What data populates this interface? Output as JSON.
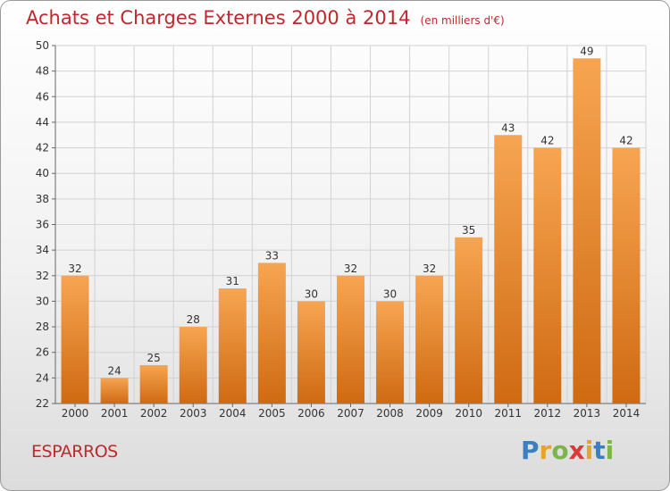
{
  "title": "Achats et Charges Externes 2000 à 2014",
  "unit": "(en milliers d'€)",
  "commune": "ESPARROS",
  "logo": {
    "letters": [
      {
        "ch": "P",
        "color": "#3a7fc4"
      },
      {
        "ch": "r",
        "color": "#e8a32a"
      },
      {
        "ch": "o",
        "color": "#7ab648"
      },
      {
        "ch": "x",
        "color": "#d83b3b"
      },
      {
        "ch": "i",
        "color": "#e8a32a"
      },
      {
        "ch": "t",
        "color": "#3a7fc4"
      },
      {
        "ch": "i",
        "color": "#7ab648"
      }
    ]
  },
  "chart_data": {
    "type": "bar",
    "categories": [
      "2000",
      "2001",
      "2002",
      "2003",
      "2004",
      "2005",
      "2006",
      "2007",
      "2008",
      "2009",
      "2010",
      "2011",
      "2012",
      "2013",
      "2014"
    ],
    "values": [
      32,
      24,
      25,
      28,
      31,
      33,
      30,
      32,
      30,
      32,
      35,
      43,
      42,
      49,
      42
    ],
    "ylim": [
      22,
      50
    ],
    "yticks": [
      22,
      24,
      26,
      28,
      30,
      32,
      34,
      36,
      38,
      40,
      42,
      44,
      46,
      48,
      50
    ],
    "grid": true,
    "bar_color_top": "#f7a552",
    "bar_color_bottom": "#cf6a12"
  }
}
